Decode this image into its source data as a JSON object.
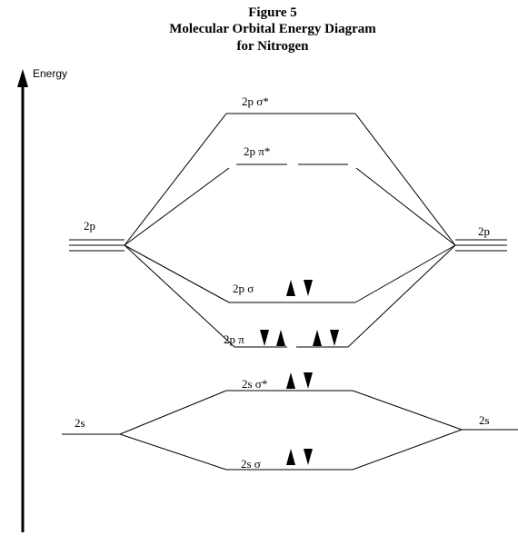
{
  "title": {
    "line1": "Figure 5",
    "line2": "Molecular Orbital Energy Diagram",
    "line3": "for Nitrogen"
  },
  "axis": {
    "label": "Energy"
  },
  "atomic_orbitals": {
    "left_2p": "2p",
    "right_2p": "2p",
    "left_2s": "2s",
    "right_2s": "2s"
  },
  "molecular_orbitals": [
    {
      "id": "sigma2p-star",
      "label": "2p σ*",
      "electrons": []
    },
    {
      "id": "pi2p-star",
      "label": "2p π*",
      "electrons": []
    },
    {
      "id": "sigma2p",
      "label": "2p σ",
      "electrons": [
        "up",
        "down"
      ]
    },
    {
      "id": "pi2p",
      "label": "2p π",
      "electrons": [
        "down",
        "up",
        "up",
        "down"
      ]
    },
    {
      "id": "sigma2s-star",
      "label": "2s σ*",
      "electrons": [
        "up",
        "down"
      ]
    },
    {
      "id": "sigma2s",
      "label": "2s σ",
      "electrons": [
        "up",
        "down"
      ]
    }
  ]
}
